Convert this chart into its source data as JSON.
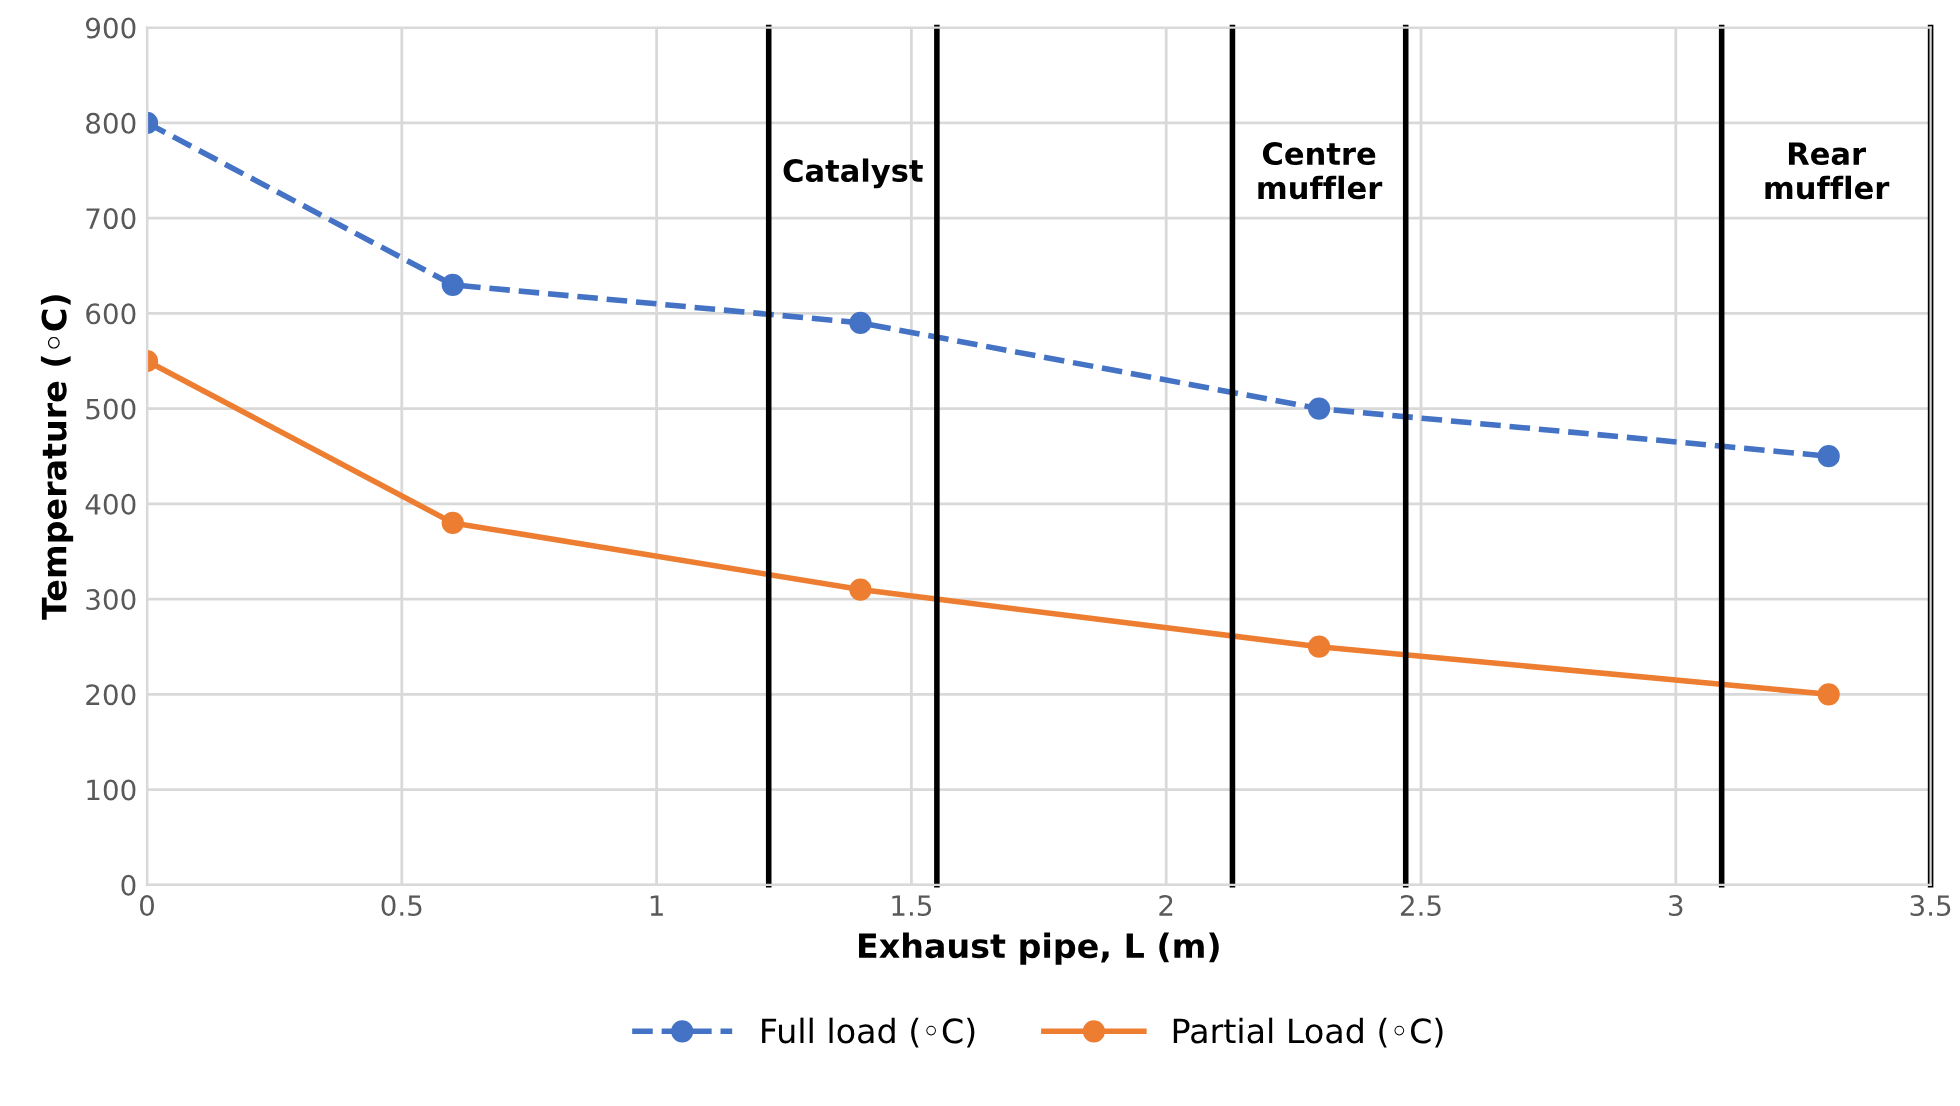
{
  "chart_data": {
    "type": "line",
    "xlabel": "Exhaust pipe, L (m)",
    "ylabel": "Temperature (◦C)",
    "x": [
      0,
      0.6,
      1.4,
      2.3,
      3.3
    ],
    "series": [
      {
        "name": "Full load (◦C)",
        "color": "#4472c4",
        "values": [
          800,
          630,
          590,
          500,
          450
        ],
        "line_style": "dashed"
      },
      {
        "name": "Partial Load (◦C)",
        "color": "#ed7d31",
        "values": [
          550,
          380,
          310,
          250,
          200
        ],
        "line_style": "solid"
      }
    ],
    "xlim": [
      0,
      3.5
    ],
    "xticks": [
      0,
      0.5,
      1,
      1.5,
      2,
      2.5,
      3,
      3.5
    ],
    "ylim": [
      0,
      900
    ],
    "yticks": [
      0,
      100,
      200,
      300,
      400,
      500,
      600,
      700,
      800,
      900
    ],
    "grid": true,
    "legend": "bottom",
    "marker": "circle",
    "ref_lines": [
      {
        "axis": "x",
        "value": 1.22,
        "color": "#000000"
      },
      {
        "axis": "x",
        "value": 1.55,
        "color": "#000000"
      },
      {
        "axis": "x",
        "value": 2.13,
        "color": "#000000"
      },
      {
        "axis": "x",
        "value": 2.47,
        "color": "#000000"
      },
      {
        "axis": "x",
        "value": 3.09,
        "color": "#000000"
      },
      {
        "axis": "x",
        "value": 3.5,
        "color": "#000000"
      }
    ],
    "annotations": [
      "Catalyst",
      "Centre\nmuffler",
      "Rear\nmuffler"
    ]
  }
}
